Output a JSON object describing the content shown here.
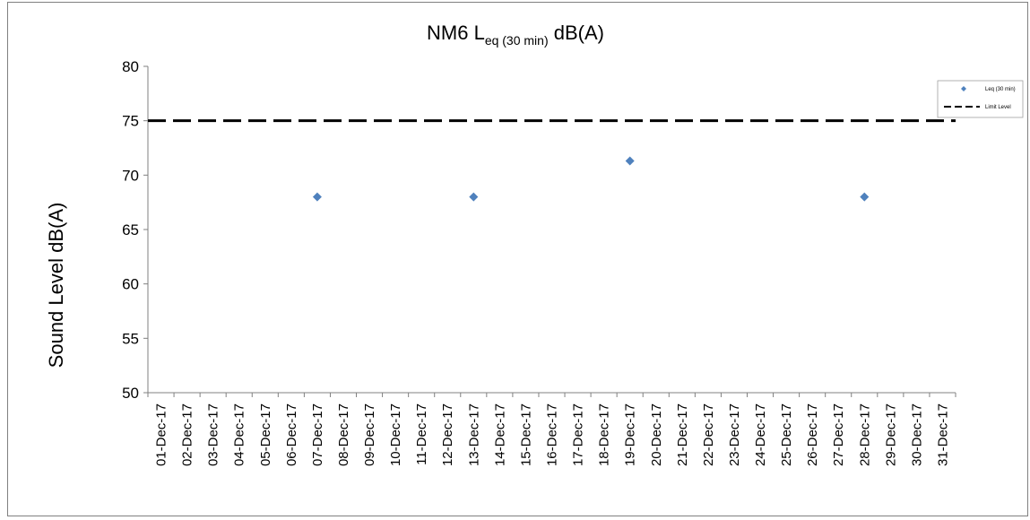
{
  "chart_data": {
    "type": "scatter",
    "title": {
      "prefix": "NM6 L",
      "subscript": "eq (30 min)",
      "suffix": " dB(A)"
    },
    "xlabel": "",
    "ylabel": "Sound Level dB(A)",
    "ylim": [
      50,
      80
    ],
    "yticks": [
      50,
      55,
      60,
      65,
      70,
      75,
      80
    ],
    "categories": [
      "01-Dec-17",
      "02-Dec-17",
      "03-Dec-17",
      "04-Dec-17",
      "05-Dec-17",
      "06-Dec-17",
      "07-Dec-17",
      "08-Dec-17",
      "09-Dec-17",
      "10-Dec-17",
      "11-Dec-17",
      "12-Dec-17",
      "13-Dec-17",
      "14-Dec-17",
      "15-Dec-17",
      "16-Dec-17",
      "17-Dec-17",
      "18-Dec-17",
      "19-Dec-17",
      "20-Dec-17",
      "21-Dec-17",
      "22-Dec-17",
      "23-Dec-17",
      "24-Dec-17",
      "25-Dec-17",
      "26-Dec-17",
      "27-Dec-17",
      "28-Dec-17",
      "29-Dec-17",
      "30-Dec-17",
      "31-Dec-17"
    ],
    "series": [
      {
        "name": "Leq (30 min)",
        "marker": "diamond",
        "color": "#4f81bd",
        "points": [
          {
            "x": "07-Dec-17",
            "y": 68
          },
          {
            "x": "13-Dec-17",
            "y": 68
          },
          {
            "x": "19-Dec-17",
            "y": 71.3
          },
          {
            "x": "28-Dec-17",
            "y": 68
          }
        ]
      },
      {
        "name": "Limit Level",
        "style": "dashed",
        "color": "#000000",
        "y": 75
      }
    ],
    "grid": false,
    "legend": "top-right"
  }
}
